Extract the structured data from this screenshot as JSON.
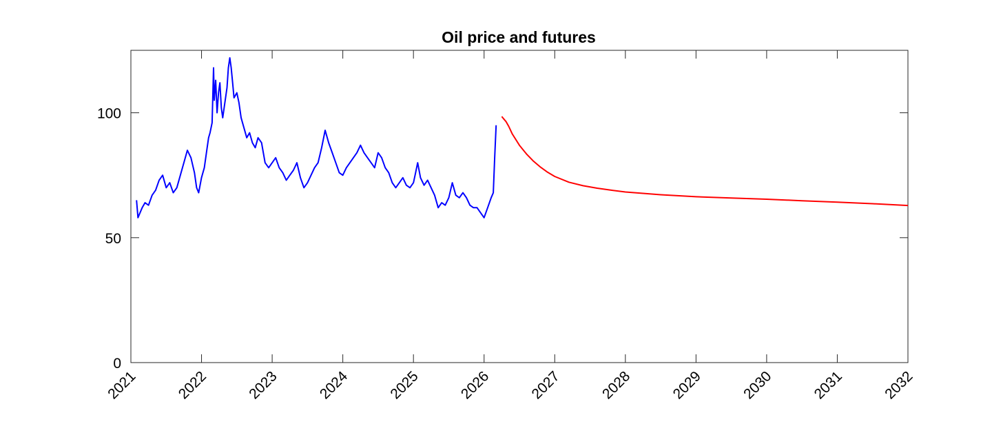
{
  "chart_data": {
    "type": "line",
    "title": "Oil price and futures",
    "xlabel": "",
    "ylabel": "",
    "xlim": [
      2021,
      2032
    ],
    "ylim": [
      0,
      125
    ],
    "grid": false,
    "legend": "none",
    "x_ticks": [
      2021,
      2022,
      2023,
      2024,
      2025,
      2026,
      2027,
      2028,
      2029,
      2030,
      2031,
      2032
    ],
    "x_tick_labels": [
      "2021",
      "2022",
      "2023",
      "2024",
      "2025",
      "2026",
      "2027",
      "2028",
      "2029",
      "2030",
      "2031",
      "2032"
    ],
    "y_ticks": [
      0,
      50,
      100
    ],
    "y_tick_labels": [
      "0",
      "50",
      "100"
    ],
    "series": [
      {
        "name": "Oil price",
        "color": "#0000ff",
        "x": [
          2021.08,
          2021.1,
          2021.13,
          2021.16,
          2021.2,
          2021.25,
          2021.3,
          2021.35,
          2021.4,
          2021.45,
          2021.5,
          2021.55,
          2021.6,
          2021.65,
          2021.7,
          2021.75,
          2021.8,
          2021.85,
          2021.9,
          2021.93,
          2021.96,
          2022.0,
          2022.04,
          2022.08,
          2022.1,
          2022.12,
          2022.15,
          2022.17,
          2022.18,
          2022.2,
          2022.22,
          2022.24,
          2022.26,
          2022.28,
          2022.3,
          2022.33,
          2022.36,
          2022.38,
          2022.4,
          2022.42,
          2022.44,
          2022.46,
          2022.5,
          2022.53,
          2022.56,
          2022.6,
          2022.64,
          2022.68,
          2022.72,
          2022.76,
          2022.8,
          2022.85,
          2022.9,
          2022.95,
          2023.0,
          2023.05,
          2023.1,
          2023.15,
          2023.2,
          2023.25,
          2023.3,
          2023.35,
          2023.4,
          2023.45,
          2023.5,
          2023.55,
          2023.6,
          2023.65,
          2023.7,
          2023.75,
          2023.8,
          2023.85,
          2023.9,
          2023.95,
          2024.0,
          2024.05,
          2024.1,
          2024.15,
          2024.2,
          2024.25,
          2024.3,
          2024.35,
          2024.4,
          2024.45,
          2024.5,
          2024.55,
          2024.6,
          2024.65,
          2024.7,
          2024.75,
          2024.8,
          2024.85,
          2024.9,
          2024.95,
          2025.0,
          2025.03,
          2025.06,
          2025.1,
          2025.15,
          2025.2,
          2025.25,
          2025.3,
          2025.35,
          2025.4,
          2025.45,
          2025.5,
          2025.55,
          2025.6,
          2025.65,
          2025.7,
          2025.75,
          2025.8,
          2025.85,
          2025.9,
          2025.95,
          2026.0,
          2026.05,
          2026.1,
          2026.13,
          2026.15,
          2026.17
        ],
        "values": [
          65,
          58,
          60,
          62,
          64,
          63,
          67,
          69,
          73,
          75,
          70,
          72,
          68,
          70,
          75,
          80,
          85,
          82,
          76,
          70,
          68,
          74,
          78,
          86,
          90,
          92,
          96,
          118,
          105,
          113,
          100,
          108,
          112,
          102,
          98,
          104,
          110,
          118,
          122,
          118,
          112,
          106,
          108,
          104,
          98,
          94,
          90,
          92,
          88,
          86,
          90,
          88,
          80,
          78,
          80,
          82,
          78,
          76,
          73,
          75,
          77,
          80,
          74,
          70,
          72,
          75,
          78,
          80,
          86,
          93,
          88,
          84,
          80,
          76,
          75,
          78,
          80,
          82,
          84,
          87,
          84,
          82,
          80,
          78,
          84,
          82,
          78,
          76,
          72,
          70,
          72,
          74,
          71,
          70,
          72,
          76,
          80,
          74,
          71,
          73,
          70,
          67,
          62,
          64,
          63,
          66,
          72,
          67,
          66,
          68,
          66,
          63,
          62,
          62,
          60,
          58,
          62,
          66,
          68,
          82,
          95
        ]
      },
      {
        "name": "Futures",
        "color": "#ff0000",
        "x": [
          2026.25,
          2026.28,
          2026.31,
          2026.35,
          2026.4,
          2026.5,
          2026.6,
          2026.7,
          2026.8,
          2026.9,
          2027.0,
          2027.2,
          2027.4,
          2027.6,
          2027.8,
          2028.0,
          2028.5,
          2029.0,
          2029.5,
          2030.0,
          2030.5,
          2031.0,
          2031.5,
          2032.0
        ],
        "values": [
          98.5,
          97.5,
          96.5,
          94.5,
          91.5,
          87.0,
          83.5,
          80.6,
          78.2,
          76.2,
          74.5,
          72.2,
          70.8,
          69.8,
          69.0,
          68.3,
          67.2,
          66.4,
          65.9,
          65.4,
          64.8,
          64.2,
          63.6,
          62.9
        ]
      }
    ]
  }
}
